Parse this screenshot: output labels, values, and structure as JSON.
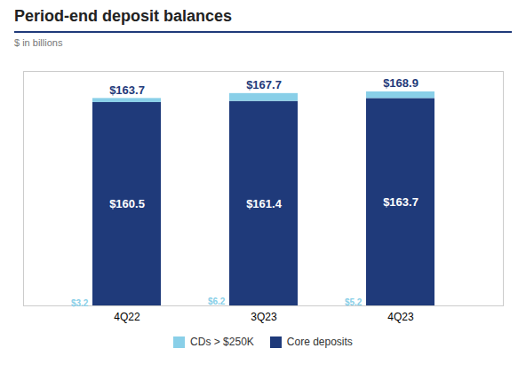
{
  "chart_data": {
    "type": "bar",
    "title": "Period-end deposit balances",
    "subtitle": "$ in billions",
    "categories": [
      "4Q22",
      "3Q23",
      "4Q23"
    ],
    "stacked": true,
    "series": [
      {
        "name": "Core deposits",
        "color": "#1f3a7a",
        "values": [
          160.5,
          161.4,
          163.7
        ],
        "value_labels": [
          "$160.5",
          "$161.4",
          "$163.7"
        ]
      },
      {
        "name": "CDs > $250K",
        "color": "#89cfe8",
        "values": [
          3.2,
          6.2,
          5.2
        ],
        "value_labels": [
          "$3.2",
          "$6.2",
          "$5.2"
        ]
      }
    ],
    "totals": [
      163.7,
      167.7,
      168.9
    ],
    "total_labels": [
      "$163.7",
      "$167.7",
      "$168.9"
    ],
    "ylim": [
      0,
      185
    ],
    "yticks": [],
    "tick_labels": "x",
    "grid": false,
    "legend": "bottom",
    "data_labels": true
  }
}
